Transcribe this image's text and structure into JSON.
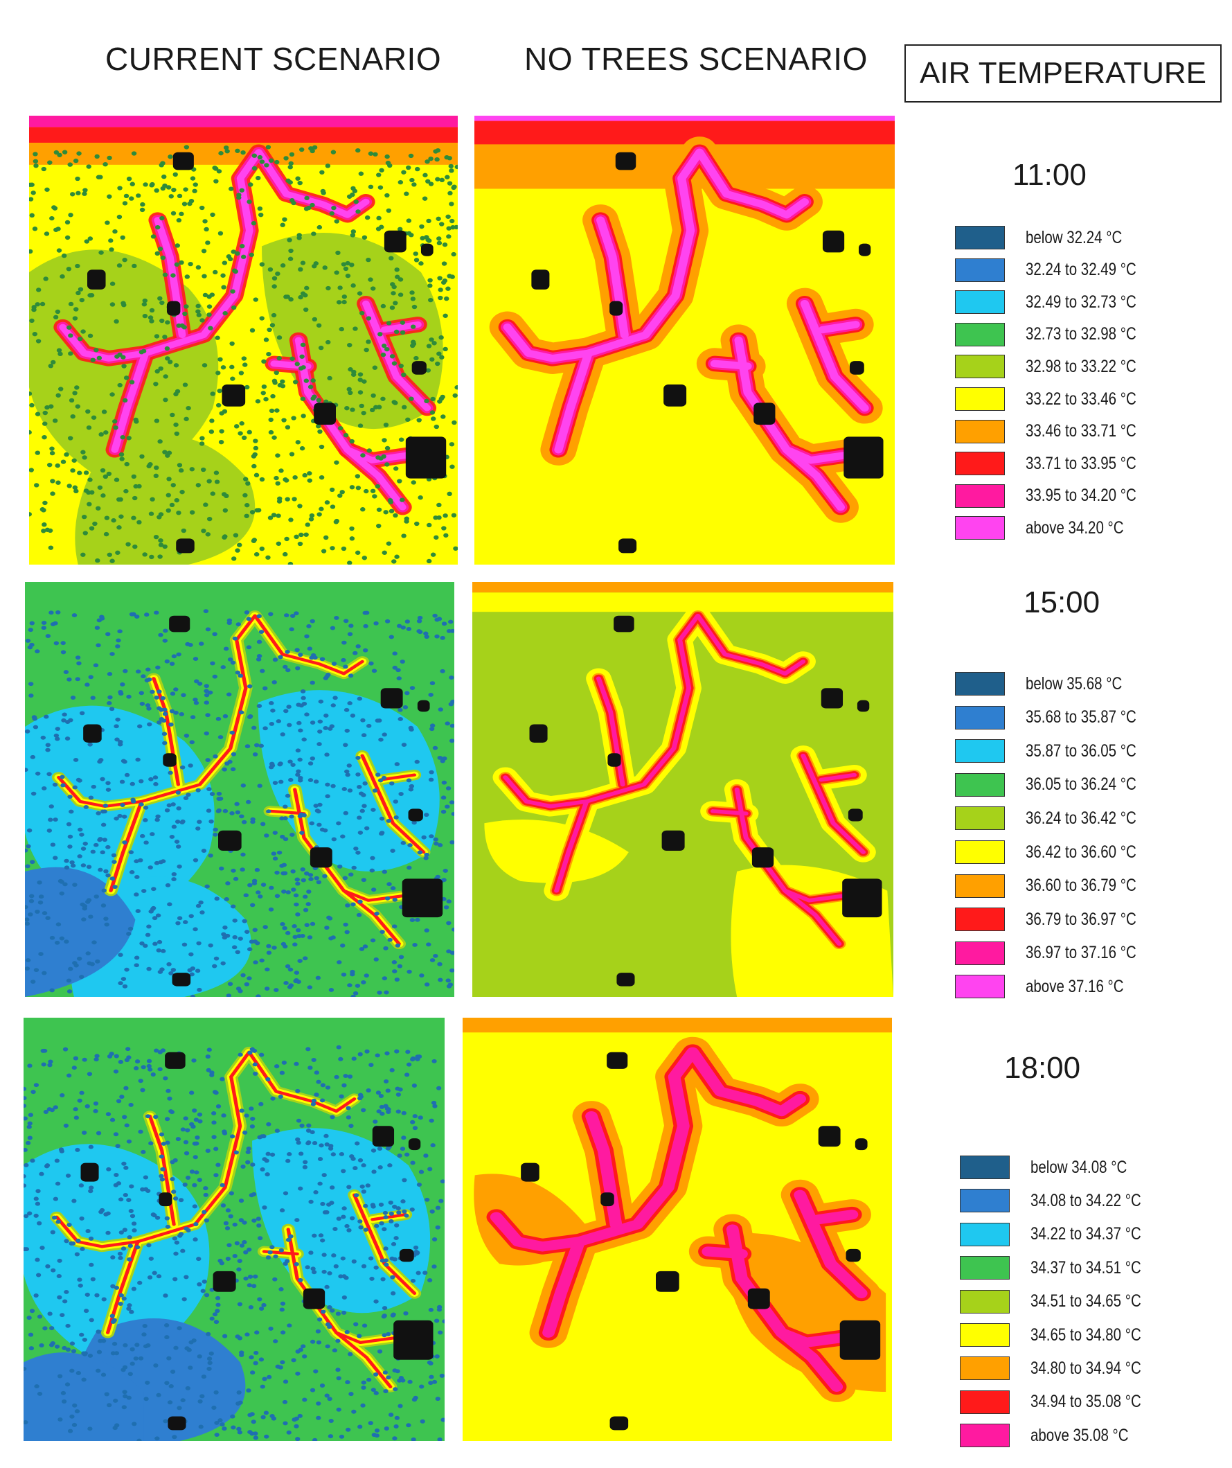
{
  "headers": {
    "current": "CURRENT SCENARIO",
    "no_trees": "NO TREES SCENARIO",
    "legend_title": "AIR TEMPERATURE"
  },
  "rows": [
    {
      "time": "11:00",
      "legend": [
        {
          "label": "below 32.24 °C",
          "color": "#1f5f8b"
        },
        {
          "label": "32.24 to 32.49 °C",
          "color": "#2f7fd0"
        },
        {
          "label": "32.49 to 32.73 °C",
          "color": "#1fc8f0"
        },
        {
          "label": "32.73 to 32.98 °C",
          "color": "#3ec450"
        },
        {
          "label": "32.98 to 33.22 °C",
          "color": "#a6d21a"
        },
        {
          "label": "33.22 to 33.46 °C",
          "color": "#ffff00"
        },
        {
          "label": "33.46 to 33.71 °C",
          "color": "#ffa000"
        },
        {
          "label": "33.71 to 33.95 °C",
          "color": "#ff1a1a"
        },
        {
          "label": "33.95 to 34.20 °C",
          "color": "#ff1aa0"
        },
        {
          "label": "above 34.20 °C",
          "color": "#ff44f0"
        }
      ]
    },
    {
      "time": "15:00",
      "legend": [
        {
          "label": "below 35.68 °C",
          "color": "#1f5f8b"
        },
        {
          "label": "35.68 to 35.87 °C",
          "color": "#2f7fd0"
        },
        {
          "label": "35.87 to 36.05 °C",
          "color": "#1fc8f0"
        },
        {
          "label": "36.05 to 36.24 °C",
          "color": "#3ec450"
        },
        {
          "label": "36.24 to 36.42 °C",
          "color": "#a6d21a"
        },
        {
          "label": "36.42 to 36.60 °C",
          "color": "#ffff00"
        },
        {
          "label": "36.60 to 36.79 °C",
          "color": "#ffa000"
        },
        {
          "label": "36.79 to 36.97 °C",
          "color": "#ff1a1a"
        },
        {
          "label": "36.97 to 37.16 °C",
          "color": "#ff1aa0"
        },
        {
          "label": "above 37.16 °C",
          "color": "#ff44f0"
        }
      ]
    },
    {
      "time": "18:00",
      "legend": [
        {
          "label": "below 34.08 °C",
          "color": "#1f5f8b"
        },
        {
          "label": "34.08 to 34.22 °C",
          "color": "#2f7fd0"
        },
        {
          "label": "34.22 to 34.37 °C",
          "color": "#1fc8f0"
        },
        {
          "label": "34.37 to 34.51 °C",
          "color": "#3ec450"
        },
        {
          "label": "34.51 to 34.65 °C",
          "color": "#a6d21a"
        },
        {
          "label": "34.65 to 34.80 °C",
          "color": "#ffff00"
        },
        {
          "label": "34.80 to 34.94 °C",
          "color": "#ffa000"
        },
        {
          "label": "34.94 to 35.08 °C",
          "color": "#ff1a1a"
        },
        {
          "label": "above 35.08 °C",
          "color": "#ff1aa0"
        }
      ]
    }
  ]
}
